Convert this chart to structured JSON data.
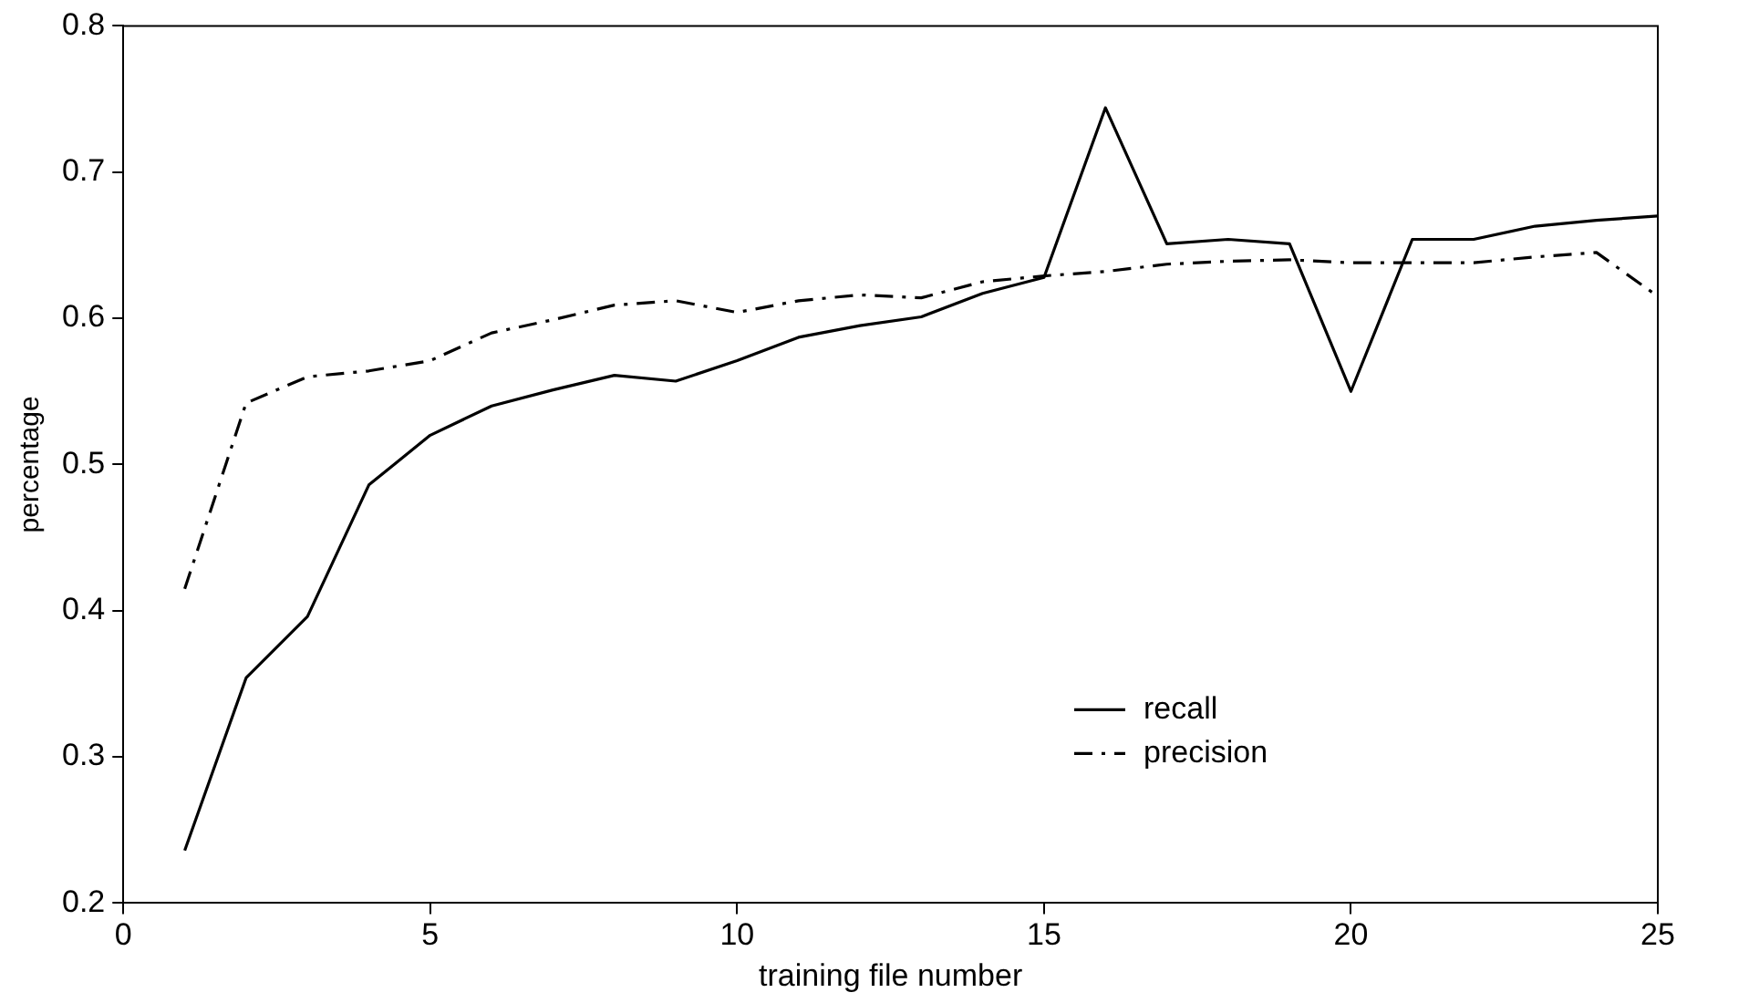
{
  "chart_data": {
    "type": "line",
    "xlabel": "training file number",
    "ylabel": "percentage",
    "x": [
      1,
      2,
      3,
      4,
      5,
      6,
      7,
      8,
      9,
      10,
      11,
      12,
      13,
      14,
      15,
      16,
      17,
      18,
      19,
      20,
      21,
      22,
      23,
      24,
      25
    ],
    "series": [
      {
        "name": "recall",
        "color": "#000000",
        "line_style": "solid",
        "values": [
          0.236,
          0.354,
          0.396,
          0.486,
          0.52,
          0.54,
          0.551,
          0.561,
          0.557,
          0.571,
          0.587,
          0.595,
          0.601,
          0.617,
          0.628,
          0.744,
          0.651,
          0.654,
          0.651,
          0.55,
          0.654,
          0.654,
          0.663,
          0.667,
          0.67
        ]
      },
      {
        "name": "precision",
        "color": "#000000",
        "line_style": "dashed",
        "values": [
          0.415,
          0.542,
          0.56,
          0.564,
          0.571,
          0.59,
          0.599,
          0.609,
          0.612,
          0.604,
          0.612,
          0.616,
          0.614,
          0.625,
          0.629,
          0.632,
          0.637,
          0.639,
          0.64,
          0.638,
          0.638,
          0.638,
          0.642,
          0.645,
          0.615
        ]
      }
    ],
    "xlim": [
      0,
      25
    ],
    "xticks": [
      0,
      5,
      10,
      15,
      20,
      25
    ],
    "ylim": [
      0.2,
      0.8
    ],
    "yticks": [
      0.2,
      0.3,
      0.4,
      0.5,
      0.6,
      0.7,
      0.8
    ],
    "grid": false,
    "legend": "bottom right",
    "marker": "none"
  }
}
